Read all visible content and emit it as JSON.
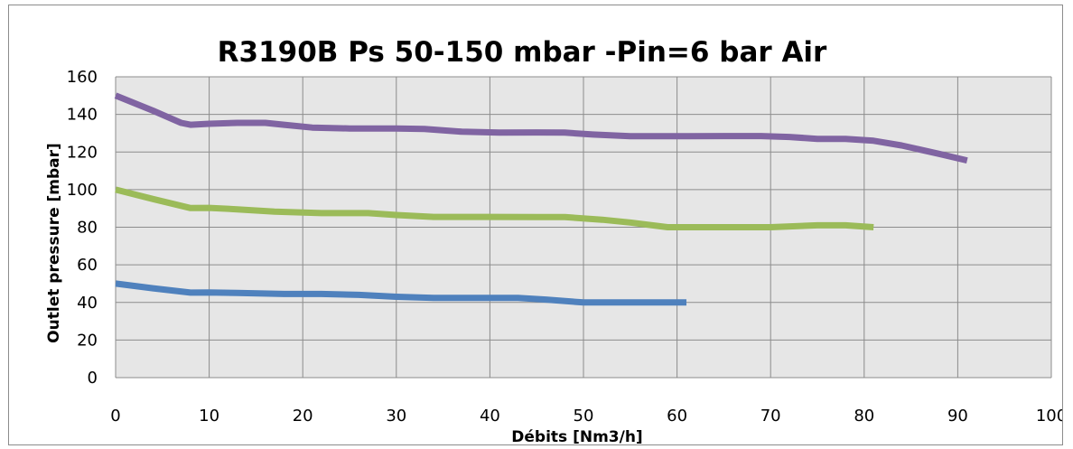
{
  "chart_data": {
    "type": "line",
    "title": "R3190B Ps 50-150 mbar -Pin=6 bar Air",
    "xlabel": "Débits [Nm3/h]",
    "ylabel": "Outlet pressure [mbar]",
    "xlim": [
      0,
      100
    ],
    "ylim": [
      0,
      160
    ],
    "x_ticks": [
      0,
      10,
      20,
      30,
      40,
      50,
      60,
      70,
      80,
      90,
      100
    ],
    "y_ticks": [
      0,
      20,
      40,
      60,
      80,
      100,
      120,
      140,
      160
    ],
    "grid": true,
    "legend": "none",
    "plot_background": "#e6e6e6",
    "grid_color": "#8c8c8c",
    "series": [
      {
        "color": "#4f81bd",
        "points": [
          [
            0,
            50
          ],
          [
            4,
            47.5
          ],
          [
            8,
            45.2
          ],
          [
            10,
            45.3
          ],
          [
            13,
            45
          ],
          [
            18,
            44.5
          ],
          [
            22,
            44.5
          ],
          [
            26,
            44
          ],
          [
            30,
            43
          ],
          [
            34,
            42.4
          ],
          [
            38,
            42.4
          ],
          [
            43,
            42.4
          ],
          [
            46,
            41.5
          ],
          [
            50,
            40
          ],
          [
            55,
            40
          ],
          [
            61,
            40
          ]
        ]
      },
      {
        "color": "#9bbb59",
        "points": [
          [
            0,
            100
          ],
          [
            4,
            95
          ],
          [
            8,
            90.2
          ],
          [
            10,
            90.3
          ],
          [
            13,
            89.5
          ],
          [
            17,
            88.3
          ],
          [
            22,
            87.5
          ],
          [
            27,
            87.5
          ],
          [
            30,
            86.5
          ],
          [
            34,
            85.5
          ],
          [
            40,
            85.5
          ],
          [
            45,
            85.4
          ],
          [
            48,
            85.4
          ],
          [
            52,
            84
          ],
          [
            55,
            82.5
          ],
          [
            59,
            80
          ],
          [
            64,
            80
          ],
          [
            70,
            80
          ],
          [
            75,
            81
          ],
          [
            78,
            81
          ],
          [
            81,
            80
          ]
        ]
      },
      {
        "color": "#8064a2",
        "points": [
          [
            0,
            150
          ],
          [
            4,
            142
          ],
          [
            7,
            135.5
          ],
          [
            8,
            134.5
          ],
          [
            10,
            135
          ],
          [
            13,
            135.5
          ],
          [
            16,
            135.5
          ],
          [
            18,
            134.5
          ],
          [
            21,
            133
          ],
          [
            25,
            132.5
          ],
          [
            30,
            132.5
          ],
          [
            33,
            132.3
          ],
          [
            37,
            130.8
          ],
          [
            41,
            130.3
          ],
          [
            45,
            130.4
          ],
          [
            48,
            130.3
          ],
          [
            51,
            129.3
          ],
          [
            55,
            128.4
          ],
          [
            59,
            128.4
          ],
          [
            65,
            128.5
          ],
          [
            69,
            128.5
          ],
          [
            72,
            128
          ],
          [
            75,
            127
          ],
          [
            78,
            127
          ],
          [
            81,
            126
          ],
          [
            84,
            123.5
          ],
          [
            88,
            119
          ],
          [
            91,
            115.5
          ]
        ]
      }
    ]
  }
}
